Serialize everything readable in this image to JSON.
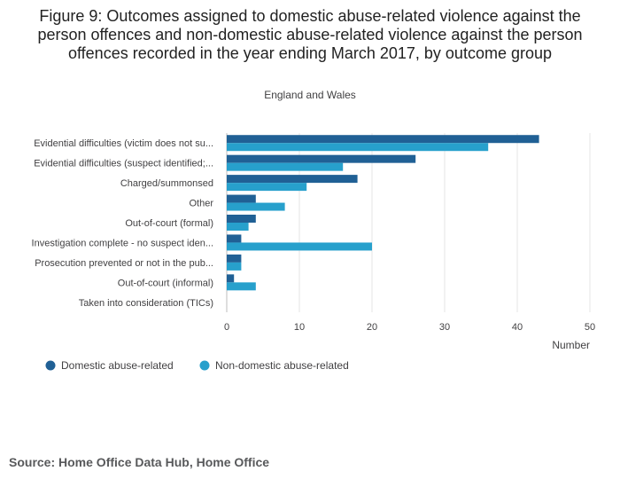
{
  "title": "Figure 9: Outcomes assigned to domestic abuse-related violence against the person offences and non-domestic abuse-related violence against the person offences recorded in the year ending March 2017, by outcome group",
  "subtitle": "England and Wales",
  "source": "Source: Home Office Data Hub, Home Office",
  "chart_data": {
    "type": "bar",
    "orientation": "horizontal",
    "categories": [
      "Evidential difficulties (victim does not su...",
      "Evidential difficulties (suspect identified;...",
      "Charged/summonsed",
      "Other",
      "Out-of-court (formal)",
      "Investigation complete - no suspect iden...",
      "Prosecution prevented or not in the pub...",
      "Out-of-court (informal)",
      "Taken into consideration (TICs)"
    ],
    "series": [
      {
        "name": "Domestic abuse-related",
        "color": "#206095",
        "values": [
          43,
          26,
          18,
          4,
          4,
          2,
          2,
          1,
          0
        ]
      },
      {
        "name": "Non-domestic abuse-related",
        "color": "#27a0cc",
        "values": [
          36,
          16,
          11,
          8,
          3,
          20,
          2,
          4,
          0
        ]
      }
    ],
    "xlabel": "Number",
    "xlim": [
      0,
      50
    ],
    "xticks": [
      0,
      10,
      20,
      30,
      40,
      50
    ],
    "grid": true,
    "legend": "bottom-left"
  }
}
